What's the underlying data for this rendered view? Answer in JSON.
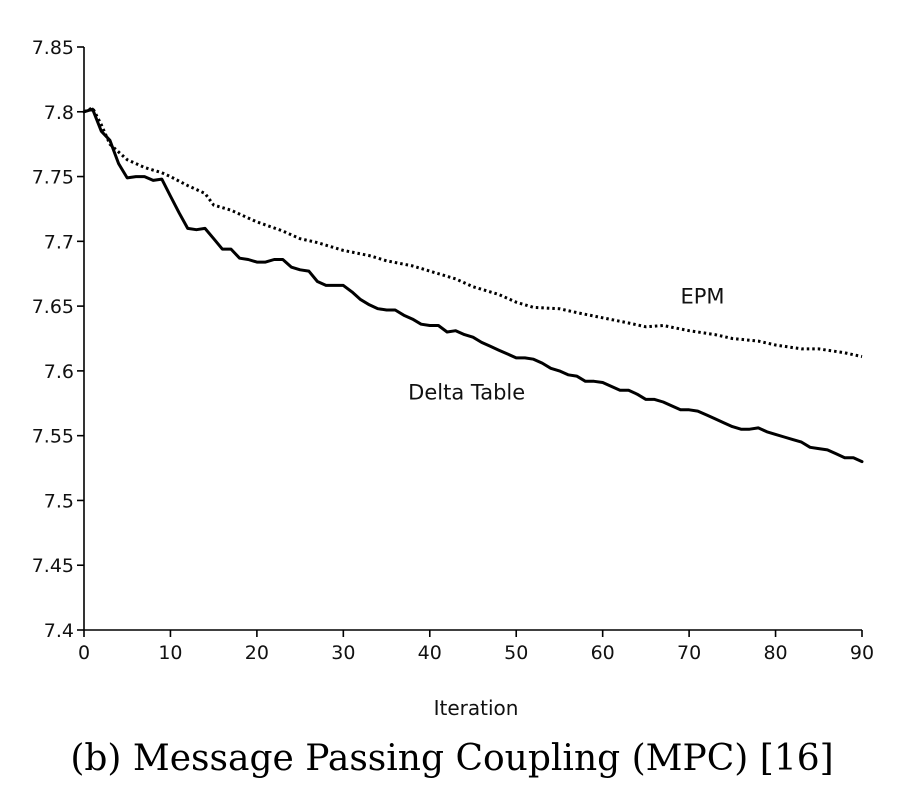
{
  "chart_data": {
    "type": "line",
    "title": "(b) Message Passing Coupling (MPC) [16]",
    "xlabel": "Iteration",
    "ylabel": "",
    "xlim": [
      0,
      90
    ],
    "ylim": [
      7.4,
      7.85
    ],
    "xticks": [
      0,
      10,
      20,
      30,
      40,
      50,
      60,
      70,
      80,
      90
    ],
    "xtick_labels": [
      "0",
      "10",
      "20",
      "30",
      "40",
      "50",
      "60",
      "70",
      "80",
      "90"
    ],
    "yticks": [
      7.4,
      7.45,
      7.5,
      7.55,
      7.6,
      7.65,
      7.7,
      7.75,
      7.8,
      7.85
    ],
    "ytick_labels": [
      "7.4",
      "7.45",
      "7.5",
      "7.55",
      "7.6",
      "7.65",
      "7.7",
      "7.75",
      "7.8",
      "7.85"
    ],
    "grid": false,
    "legend": "none (inline series labels)",
    "series": [
      {
        "name": "EPM",
        "style": "dotted",
        "color": "#000000",
        "x": [
          0,
          1,
          2,
          3,
          5,
          7,
          9,
          10,
          12,
          14,
          15,
          17,
          20,
          23,
          25,
          27,
          30,
          33,
          35,
          38,
          40,
          43,
          45,
          48,
          50,
          52,
          55,
          57,
          60,
          63,
          65,
          67,
          70,
          73,
          75,
          78,
          80,
          83,
          85,
          88,
          90
        ],
        "y": [
          7.8,
          7.803,
          7.79,
          7.775,
          7.763,
          7.757,
          7.753,
          7.75,
          7.743,
          7.737,
          7.728,
          7.724,
          7.715,
          7.708,
          7.702,
          7.699,
          7.693,
          7.689,
          7.685,
          7.681,
          7.677,
          7.671,
          7.665,
          7.659,
          7.653,
          7.649,
          7.648,
          7.645,
          7.641,
          7.637,
          7.634,
          7.635,
          7.631,
          7.628,
          7.625,
          7.623,
          7.62,
          7.617,
          7.617,
          7.614,
          7.611
        ]
      },
      {
        "name": "Delta Table",
        "style": "solid",
        "color": "#000000",
        "x": [
          0,
          1,
          2,
          3,
          4,
          5,
          6,
          7,
          8,
          9,
          10,
          11,
          12,
          13,
          14,
          15,
          16,
          17,
          18,
          19,
          20,
          21,
          22,
          23,
          24,
          25,
          26,
          27,
          28,
          29,
          30,
          31,
          32,
          33,
          34,
          35,
          36,
          37,
          38,
          39,
          40,
          41,
          42,
          43,
          44,
          45,
          46,
          47,
          48,
          49,
          50,
          51,
          52,
          53,
          54,
          55,
          56,
          57,
          58,
          59,
          60,
          61,
          62,
          63,
          64,
          65,
          66,
          67,
          68,
          69,
          70,
          71,
          72,
          73,
          74,
          75,
          76,
          77,
          78,
          79,
          80,
          81,
          82,
          83,
          84,
          85,
          86,
          87,
          88,
          89,
          90
        ],
        "y": [
          7.8,
          7.802,
          7.785,
          7.778,
          7.76,
          7.749,
          7.75,
          7.75,
          7.747,
          7.748,
          7.735,
          7.722,
          7.71,
          7.709,
          7.71,
          7.702,
          7.694,
          7.694,
          7.687,
          7.686,
          7.684,
          7.684,
          7.686,
          7.686,
          7.68,
          7.678,
          7.677,
          7.669,
          7.666,
          7.666,
          7.666,
          7.661,
          7.655,
          7.651,
          7.648,
          7.647,
          7.647,
          7.643,
          7.64,
          7.636,
          7.635,
          7.635,
          7.63,
          7.631,
          7.628,
          7.626,
          7.622,
          7.619,
          7.616,
          7.613,
          7.61,
          7.61,
          7.609,
          7.606,
          7.602,
          7.6,
          7.597,
          7.596,
          7.592,
          7.592,
          7.591,
          7.588,
          7.585,
          7.585,
          7.582,
          7.578,
          7.578,
          7.576,
          7.573,
          7.57,
          7.57,
          7.569,
          7.566,
          7.563,
          7.56,
          7.557,
          7.555,
          7.555,
          7.556,
          7.553,
          7.551,
          7.549,
          7.547,
          7.545,
          7.541,
          7.54,
          7.539,
          7.536,
          7.533,
          7.533,
          7.53
        ]
      }
    ],
    "annotations": [
      {
        "text": "EPM",
        "series": "EPM",
        "x": 69,
        "y": 7.652
      },
      {
        "text": "Delta Table",
        "series": "Delta Table",
        "x": 37.5,
        "y": 7.578
      }
    ]
  }
}
